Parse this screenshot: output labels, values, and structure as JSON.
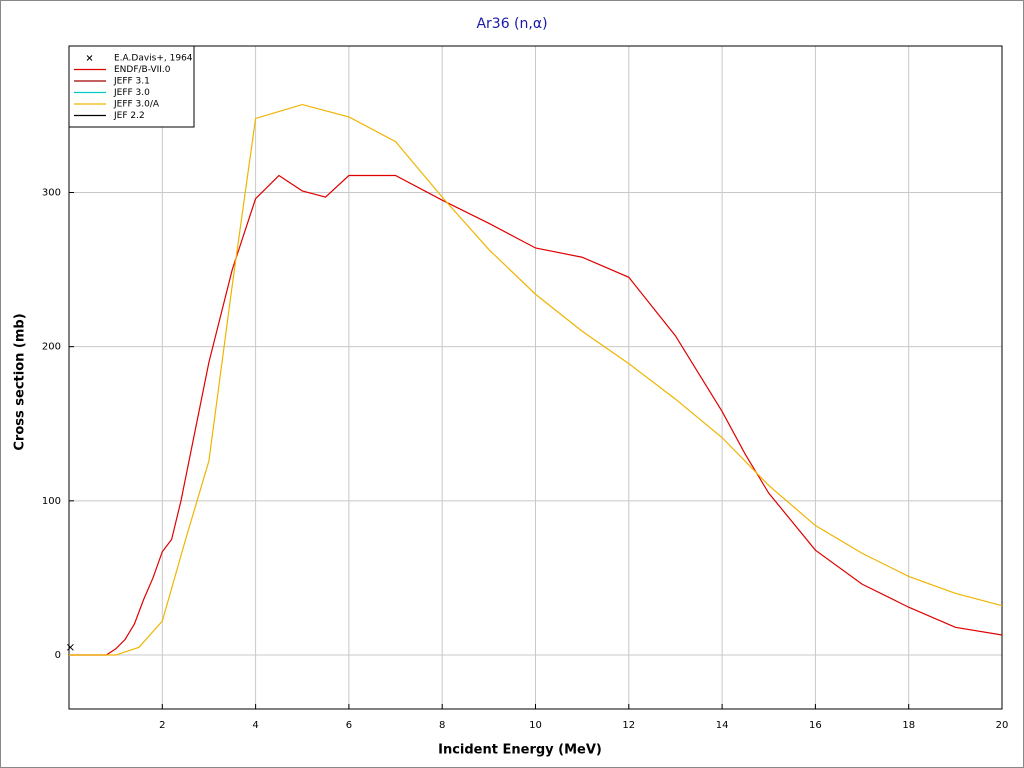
{
  "chart_data": {
    "type": "line",
    "title": "Ar36 (n,α)",
    "x_label": "Incident Energy (MeV)",
    "y_label": "Cross section (mb)",
    "xlim": [
      0,
      20
    ],
    "ylim": [
      -35,
      395
    ],
    "xticks": [
      2,
      4,
      6,
      8,
      10,
      12,
      14,
      16,
      18,
      20
    ],
    "yticks": [
      0,
      100,
      200,
      300
    ],
    "grid": true,
    "legend": "top-left",
    "series": [
      {
        "name": "E.A.Davis+, 1964",
        "color": "#000000",
        "mode": "scatter",
        "x": [
          0.03
        ],
        "values": [
          5
        ]
      },
      {
        "name": "ENDF/B-VII.0",
        "color": "#e00000",
        "mode": "line",
        "x": [
          0,
          0.8,
          1.0,
          1.2,
          1.4,
          1.6,
          1.8,
          2.0,
          2.2,
          2.4,
          2.6,
          2.8,
          3.0,
          3.5,
          4.0,
          4.5,
          5.0,
          5.5,
          6.0,
          7.0,
          8.0,
          9.0,
          10.0,
          11.0,
          12.0,
          13.0,
          14.0,
          14.5,
          15.0,
          16.0,
          17.0,
          18.0,
          19.0,
          20.0
        ],
        "values": [
          0,
          0,
          4,
          10,
          20,
          36,
          50,
          67,
          75,
          100,
          130,
          160,
          190,
          250,
          296,
          311,
          301,
          297,
          311,
          311,
          295,
          280,
          264,
          258,
          245,
          207,
          158,
          130,
          105,
          68,
          46,
          31,
          18,
          13
        ]
      },
      {
        "name": "JEFF 3.1",
        "color": "#a00000",
        "mode": "line",
        "x": [],
        "values": []
      },
      {
        "name": "JEFF 3.0",
        "color": "#00c8c8",
        "mode": "line",
        "x": [],
        "values": []
      },
      {
        "name": "JEFF 3.0/A",
        "color": "#f0b400",
        "mode": "line",
        "x": [
          0,
          1.0,
          1.5,
          2.0,
          2.5,
          3.0,
          3.5,
          4.0,
          5.0,
          6.0,
          7.0,
          8.0,
          9.0,
          10.0,
          11.0,
          12.0,
          13.0,
          14.0,
          15.0,
          16.0,
          17.0,
          18.0,
          19.0,
          20.0
        ],
        "values": [
          0,
          0,
          5,
          22,
          75,
          126,
          240,
          348,
          357,
          349,
          333,
          297,
          263,
          234,
          210,
          189,
          166,
          141,
          110,
          84,
          66,
          51,
          40,
          32
        ]
      },
      {
        "name": "JEF 2.2",
        "color": "#000000",
        "mode": "line",
        "x": [],
        "values": []
      }
    ]
  }
}
